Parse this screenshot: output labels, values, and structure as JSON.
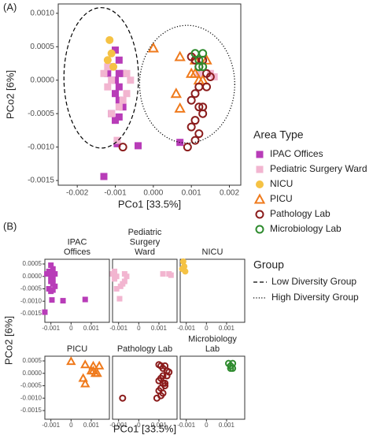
{
  "chart_data": [
    {
      "type": "scatter",
      "label": "(A)",
      "x_label": "PCo1 [33.5%]",
      "y_label": "PCo2 [6%]",
      "xlim": [
        -0.0025,
        0.0023
      ],
      "ylim": [
        -0.00157,
        0.00114
      ],
      "xticks": [
        -0.002,
        -0.001,
        {
          "value": 0,
          "label": "0.000"
        },
        0.001,
        0.002
      ],
      "yticks": [
        {
          "value": 0.001,
          "label": "0.0010"
        },
        0.0005,
        {
          "value": 0,
          "label": "0.0000"
        },
        -0.0005,
        {
          "value": -0.001,
          "label": "-0.0010"
        },
        -0.0015
      ],
      "legend_title": "Area Type",
      "group_legend_title": "Group",
      "series": [
        {
          "name": "IPAC Offices",
          "color": "#b83cb8",
          "marker": "square",
          "x": [
            -0.001,
            -0.0009,
            -0.0011,
            -0.0009,
            -0.001,
            -0.0008,
            -0.0009,
            -0.001,
            -0.0009,
            -0.0008,
            -0.0009,
            -0.001,
            -0.0011,
            -0.00095,
            -0.0004,
            -0.0013,
            0.0007,
            -0.0012
          ],
          "y": [
            0.00045,
            0.0003,
            0.0002,
            0.0001,
            0.0,
            0.0001,
            -0.0001,
            -0.0002,
            -0.0003,
            -0.0004,
            -0.00055,
            -0.0006,
            -0.0005,
            -0.00095,
            -0.00098,
            -0.00144,
            -0.00093,
            0.0001
          ]
        },
        {
          "name": "Pediatric Surgery Ward",
          "color": "#f2b5d0",
          "marker": "square",
          "x": [
            -0.0012,
            -0.0013,
            -0.0011,
            -0.0012,
            -0.0007,
            -0.0006,
            -0.0007,
            -0.0008,
            -0.0009,
            -0.0011,
            0.0015,
            0.0016,
            0.0012,
            -0.00095
          ],
          "y": [
            0.0002,
            0.0001,
            0.0,
            -0.0001,
            0.0001,
            0.0,
            -0.0002,
            -0.0003,
            -0.0004,
            -0.0005,
            0.0001,
            5e-05,
            0.0001,
            -0.0009
          ]
        },
        {
          "name": "NICU",
          "color": "#f5c244",
          "marker": "circle-filled",
          "x": [
            -0.00115,
            -0.0011,
            -0.0012,
            -0.00105
          ],
          "y": [
            0.0006,
            0.0004,
            0.0003,
            0.0002
          ]
        },
        {
          "name": "PICU",
          "color": "#ef7a1c",
          "marker": "triangle",
          "x": [
            0.0,
            0.0007,
            0.0011,
            0.0014,
            0.0011,
            0.0012,
            0.001,
            0.0013,
            0.0006,
            0.0007
          ],
          "y": [
            0.00048,
            0.00035,
            0.0003,
            0.0003,
            0.0001,
            0.0,
            0.0001,
            0.0,
            -0.0002,
            -0.00042
          ]
        },
        {
          "name": "Pathology Lab",
          "color": "#8b1c1c",
          "marker": "circle",
          "x": [
            0.001,
            0.0011,
            0.0013,
            0.0012,
            0.0014,
            0.0015,
            0.0012,
            0.0011,
            0.0014,
            0.001,
            0.0012,
            0.0013,
            0.0011,
            0.001,
            0.0012,
            0.0011,
            0.0009,
            -0.0008,
            0.0013
          ],
          "y": [
            0.00035,
            0.0003,
            0.0003,
            0.0002,
            0.0001,
            5e-05,
            -0.0001,
            -0.0002,
            -0.0001,
            -0.0003,
            -0.0004,
            -0.0005,
            -0.0006,
            -0.0007,
            -0.0008,
            -0.0009,
            -0.001,
            -0.001,
            -0.0004
          ]
        },
        {
          "name": "Microbiology Lab",
          "color": "#2e8b2e",
          "marker": "circle",
          "x": [
            0.0011,
            0.0012,
            0.0013,
            0.0012,
            0.0013
          ],
          "y": [
            0.0004,
            0.0003,
            0.0004,
            0.0002,
            0.0002
          ]
        }
      ],
      "ellipses": [
        {
          "name": "Low Diversity Group",
          "line": "dashed",
          "cx": -0.00137,
          "cy": 3.5e-05,
          "rx": 0.00098,
          "ry": 0.00105
        },
        {
          "name": "High Diversity Group",
          "line": "dotted",
          "cx": 0.00089,
          "cy": -6e-05,
          "rx": 0.00125,
          "ry": 0.00088
        }
      ]
    },
    {
      "type": "facet-scatter",
      "label": "(B)",
      "x_label": "PCo1 [33.5%]",
      "y_label": "PCo2 [6%]",
      "xlim": [
        -0.0013,
        0.0019
      ],
      "ylim": [
        -0.00185,
        0.00069
      ],
      "xticks": [
        -0.001,
        0,
        0.001
      ],
      "yticks": [
        0.0005,
        {
          "value": 0,
          "label": "0.0000"
        },
        -0.0005,
        {
          "value": -0.001,
          "label": "-0.0010"
        },
        -0.0015
      ],
      "facet_titles": [
        [
          "IPAC",
          "Offices"
        ],
        [
          "Pediatric",
          "Surgery",
          "Ward"
        ],
        [
          "NICU"
        ],
        [
          "PICU"
        ],
        [
          "Pathology Lab"
        ],
        [
          "Microbiology",
          "Lab"
        ]
      ]
    }
  ]
}
